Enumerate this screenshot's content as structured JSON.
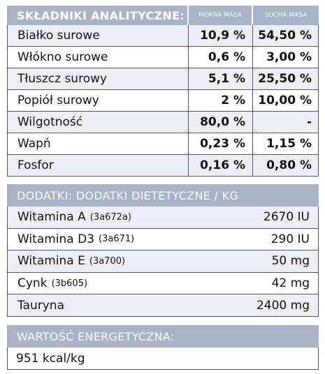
{
  "analytical": {
    "title": "SKŁADNIKI ANALITYCZNE:",
    "columns": [
      "MOKRA MASA",
      "SUCHA MASA"
    ],
    "rows": [
      [
        "Białko surowe",
        "10,9 %",
        "54,50 %"
      ],
      [
        "Włókno surowe",
        "0,6 %",
        "3,00 %"
      ],
      [
        "Tłuszcz surowy",
        "5,1 %",
        "25,50 %"
      ],
      [
        "Popiół surowy",
        "2 %",
        "10,00 %"
      ],
      [
        "Wilgotność",
        "80,0 %",
        "-"
      ],
      [
        "Wapń",
        "0,23 %",
        "1,15 %"
      ],
      [
        "Fosfor",
        "0,16 %",
        "0,80 %"
      ]
    ]
  },
  "additives": {
    "title": "DODATKI: DODATKI DIETETYCZNE / KG",
    "rows": [
      {
        "name": "Witamina A",
        "code": "(3a672a)",
        "value": "2670 IU"
      },
      {
        "name": "Witamina D3",
        "code": "(3a671)",
        "value": "290 IU"
      },
      {
        "name": "Witamina E",
        "code": "(3a700)",
        "value": "50 mg"
      },
      {
        "name": "Cynk",
        "code": "(3b605)",
        "value": "42 mg"
      },
      {
        "name": "Tauryna",
        "value": "2400 mg"
      }
    ]
  },
  "energy": {
    "title": "WARTOŚĆ ENERGETYCZNA:",
    "value": "951 kcal/kg"
  }
}
